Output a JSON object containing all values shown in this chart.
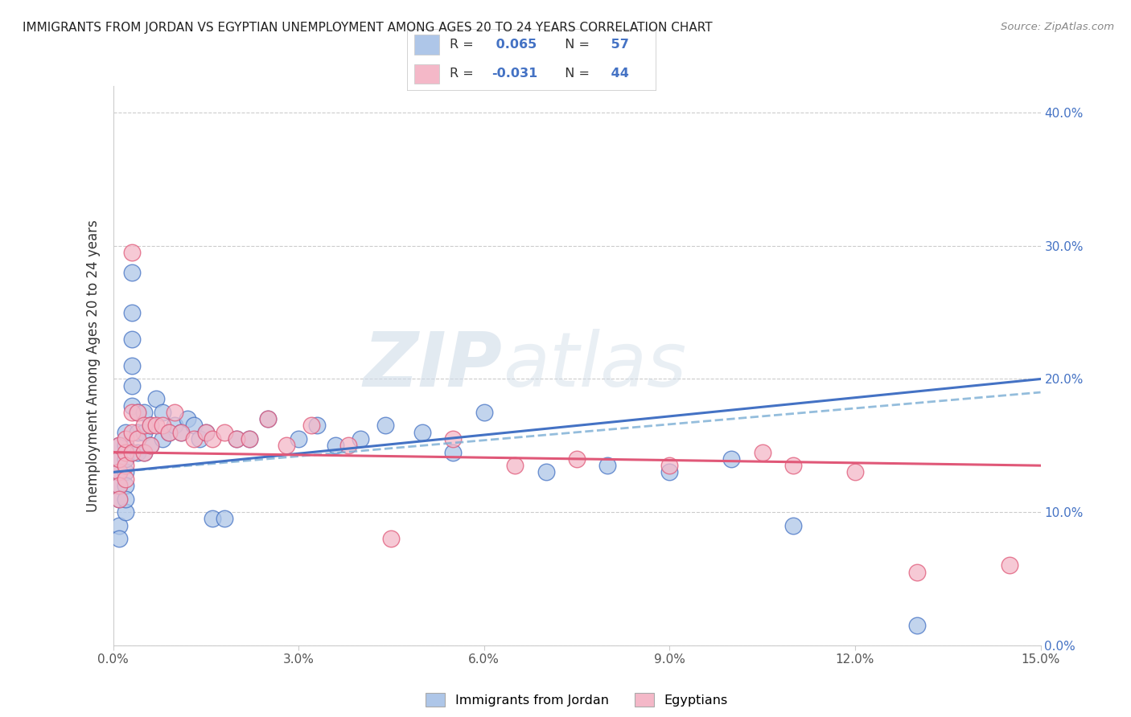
{
  "title": "IMMIGRANTS FROM JORDAN VS EGYPTIAN UNEMPLOYMENT AMONG AGES 20 TO 24 YEARS CORRELATION CHART",
  "source": "Source: ZipAtlas.com",
  "ylabel": "Unemployment Among Ages 20 to 24 years",
  "legend_label1": "Immigrants from Jordan",
  "legend_label2": "Egyptians",
  "r1": 0.065,
  "n1": 57,
  "r2": -0.031,
  "n2": 44,
  "xlim": [
    0.0,
    0.15
  ],
  "ylim": [
    0.0,
    0.42
  ],
  "xticks": [
    0.0,
    0.03,
    0.06,
    0.09,
    0.12,
    0.15
  ],
  "yticks": [
    0.0,
    0.1,
    0.2,
    0.3,
    0.4
  ],
  "xtick_labels": [
    "0.0%",
    "3.0%",
    "6.0%",
    "9.0%",
    "12.0%",
    "15.0%"
  ],
  "ytick_labels_right": [
    "0.0%",
    "10.0%",
    "20.0%",
    "30.0%",
    "40.0%"
  ],
  "color_jordan": "#aec6e8",
  "color_egypt": "#f4b8c8",
  "line_color_jordan": "#4472c4",
  "line_color_egypt": "#e05878",
  "line_color_jordan_dash": "#7aadd4",
  "background_color": "#ffffff",
  "watermark_zip": "ZIP",
  "watermark_atlas": "atlas",
  "jordan_x": [
    0.001,
    0.001,
    0.001,
    0.001,
    0.001,
    0.001,
    0.001,
    0.002,
    0.002,
    0.002,
    0.002,
    0.002,
    0.002,
    0.002,
    0.003,
    0.003,
    0.003,
    0.003,
    0.003,
    0.003,
    0.004,
    0.004,
    0.004,
    0.005,
    0.005,
    0.005,
    0.006,
    0.006,
    0.007,
    0.008,
    0.008,
    0.009,
    0.01,
    0.011,
    0.012,
    0.013,
    0.014,
    0.015,
    0.016,
    0.018,
    0.02,
    0.022,
    0.025,
    0.03,
    0.033,
    0.036,
    0.04,
    0.044,
    0.05,
    0.055,
    0.06,
    0.07,
    0.08,
    0.09,
    0.1,
    0.11,
    0.13
  ],
  "jordan_y": [
    0.12,
    0.13,
    0.14,
    0.15,
    0.11,
    0.09,
    0.08,
    0.13,
    0.15,
    0.16,
    0.1,
    0.12,
    0.14,
    0.11,
    0.28,
    0.25,
    0.23,
    0.18,
    0.21,
    0.195,
    0.175,
    0.16,
    0.145,
    0.16,
    0.175,
    0.145,
    0.165,
    0.15,
    0.185,
    0.175,
    0.155,
    0.16,
    0.165,
    0.16,
    0.17,
    0.165,
    0.155,
    0.16,
    0.095,
    0.095,
    0.155,
    0.155,
    0.17,
    0.155,
    0.165,
    0.15,
    0.155,
    0.165,
    0.16,
    0.145,
    0.175,
    0.13,
    0.135,
    0.13,
    0.14,
    0.09,
    0.015
  ],
  "egypt_x": [
    0.001,
    0.001,
    0.001,
    0.001,
    0.001,
    0.002,
    0.002,
    0.002,
    0.002,
    0.003,
    0.003,
    0.003,
    0.003,
    0.004,
    0.004,
    0.005,
    0.005,
    0.006,
    0.006,
    0.007,
    0.008,
    0.009,
    0.01,
    0.011,
    0.013,
    0.015,
    0.016,
    0.018,
    0.02,
    0.022,
    0.025,
    0.028,
    0.032,
    0.038,
    0.045,
    0.055,
    0.065,
    0.075,
    0.09,
    0.105,
    0.12,
    0.13,
    0.145,
    0.11
  ],
  "egypt_y": [
    0.13,
    0.14,
    0.15,
    0.12,
    0.11,
    0.145,
    0.135,
    0.155,
    0.125,
    0.145,
    0.295,
    0.175,
    0.16,
    0.175,
    0.155,
    0.165,
    0.145,
    0.165,
    0.15,
    0.165,
    0.165,
    0.16,
    0.175,
    0.16,
    0.155,
    0.16,
    0.155,
    0.16,
    0.155,
    0.155,
    0.17,
    0.15,
    0.165,
    0.15,
    0.08,
    0.155,
    0.135,
    0.14,
    0.135,
    0.145,
    0.13,
    0.055,
    0.06,
    0.135
  ]
}
